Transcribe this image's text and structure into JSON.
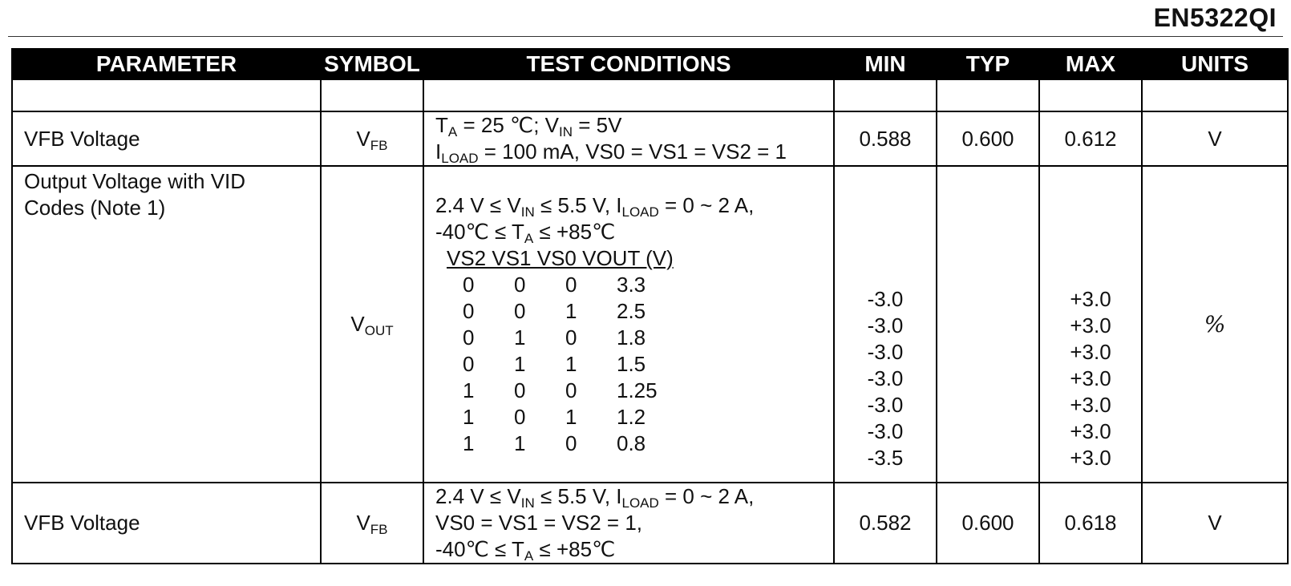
{
  "doc_title": "EN5322QI",
  "table": {
    "headers": {
      "parameter": "PARAMETER",
      "symbol": "SYMBOL",
      "conditions": "TEST CONDITIONS",
      "min": "MIN",
      "typ": "TYP",
      "max": "MAX",
      "units": "UNITS"
    },
    "row1": {
      "parameter": "VFB Voltage",
      "symbol_main": "V",
      "symbol_sub": "FB",
      "cond": {
        "l1_a": "T",
        "l1_a_sub": "A",
        "l1_b": " = 25 ℃; V",
        "l1_b_sub": "IN",
        "l1_c": " = 5V",
        "l2_a": "I",
        "l2_a_sub": "LOAD",
        "l2_b": " = 100 mA, VS0 = VS1 = VS2 = 1"
      },
      "min": "0.588",
      "typ": "0.600",
      "max": "0.612",
      "units": "V"
    },
    "row2": {
      "parameter_line1": "Output Voltage with VID",
      "parameter_line2": "Codes (Note 1)",
      "symbol_main": "V",
      "symbol_sub": "OUT",
      "cond": {
        "l1_a": "2.4 V ≤ V",
        "l1_a_sub": "IN",
        "l1_b": " ≤ 5.5 V, I",
        "l1_b_sub": "LOAD",
        "l1_c": " = 0 ~ 2 A,",
        "l2_a": "-40℃ ≤ T",
        "l2_a_sub": "A",
        "l2_b": " ≤ +85℃",
        "vid_header": "VS2 VS1 VS0 VOUT (V)"
      },
      "vid_codes": [
        {
          "vs2": "0",
          "vs1": "0",
          "vs0": "0",
          "vout": "3.3",
          "min": "-3.0",
          "max": "+3.0"
        },
        {
          "vs2": "0",
          "vs1": "0",
          "vs0": "1",
          "vout": "2.5",
          "min": "-3.0",
          "max": "+3.0"
        },
        {
          "vs2": "0",
          "vs1": "1",
          "vs0": "0",
          "vout": "1.8",
          "min": "-3.0",
          "max": "+3.0"
        },
        {
          "vs2": "0",
          "vs1": "1",
          "vs0": "1",
          "vout": "1.5",
          "min": "-3.0",
          "max": "+3.0"
        },
        {
          "vs2": "1",
          "vs1": "0",
          "vs0": "0",
          "vout": "1.25",
          "min": "-3.0",
          "max": "+3.0"
        },
        {
          "vs2": "1",
          "vs1": "0",
          "vs0": "1",
          "vout": "1.2",
          "min": "-3.0",
          "max": "+3.0"
        },
        {
          "vs2": "1",
          "vs1": "1",
          "vs0": "0",
          "vout": "0.8",
          "min": "-3.5",
          "max": "+3.0"
        }
      ],
      "units": "%"
    },
    "row3": {
      "parameter": "VFB Voltage",
      "symbol_main": "V",
      "symbol_sub": "FB",
      "cond": {
        "l1_a": "2.4 V ≤ V",
        "l1_a_sub": "IN",
        "l1_b": " ≤ 5.5 V, I",
        "l1_b_sub": "LOAD",
        "l1_c": " = 0 ~ 2 A,",
        "l2": "VS0 = VS1 = VS2 = 1,",
        "l3_a": "-40℃ ≤ T",
        "l3_a_sub": "A",
        "l3_b": " ≤ +85℃"
      },
      "min": "0.582",
      "typ": "0.600",
      "max": "0.618",
      "units": "V"
    }
  }
}
